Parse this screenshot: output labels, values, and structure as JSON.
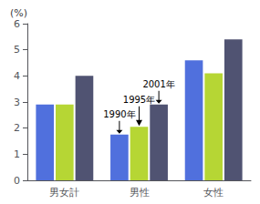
{
  "chart_data": {
    "type": "bar",
    "title": "(%)",
    "categories": [
      "男女計",
      "男性",
      "女性"
    ],
    "series": [
      {
        "name": "1990年",
        "values": [
          2.9,
          1.75,
          4.6
        ]
      },
      {
        "name": "1995年",
        "values": [
          2.9,
          2.05,
          4.1
        ]
      },
      {
        "name": "2001年",
        "values": [
          4.0,
          2.9,
          5.4
        ]
      }
    ],
    "ylim": [
      0,
      6
    ],
    "yticks": [
      0,
      1,
      2,
      3,
      4,
      5,
      6
    ],
    "grid": false,
    "legend": false,
    "annotations": [
      {
        "text": "1990年",
        "category": "男性",
        "series": "1990年"
      },
      {
        "text": "1995年",
        "category": "男性",
        "series": "1995年"
      },
      {
        "text": "2001年",
        "category": "男性",
        "series": "2001年"
      }
    ]
  }
}
